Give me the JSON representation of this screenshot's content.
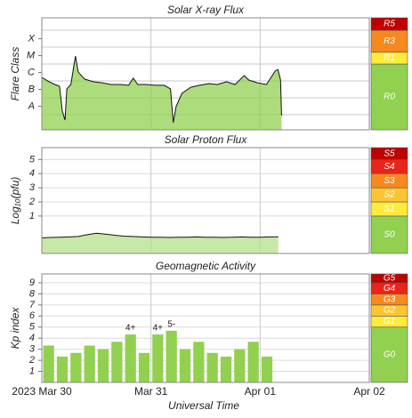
{
  "chart_data": [
    {
      "type": "area",
      "title": "Solar X-ray Flux",
      "ylabel": "Flare Class",
      "color": "#92d050",
      "line_color": "#111111",
      "x": [
        0,
        1.6,
        2.9,
        3.9,
        4.5,
        5.1,
        5.5,
        6.4,
        7.0,
        7.4,
        8.0,
        9.4,
        11.3,
        13.3,
        15.2,
        17.2,
        19.1,
        20.1,
        21.1,
        23.0,
        25.0,
        26.9,
        28.3,
        28.9,
        29.5,
        30.8,
        32.8,
        34.7,
        36.7,
        38.6,
        40.6,
        42.5,
        44.5,
        45.5,
        47.4,
        49.4,
        51.3,
        51.9,
        52.5,
        52.7
      ],
      "values": [
        -5.79,
        -6.05,
        -6.21,
        -6.32,
        -7.79,
        -8.32,
        -6.47,
        -6.21,
        -5.16,
        -4.53,
        -5.47,
        -5.89,
        -6.05,
        -6.11,
        -6.21,
        -6.21,
        -6.26,
        -5.84,
        -6.21,
        -6.21,
        -6.26,
        -6.26,
        -6.47,
        -8.47,
        -7.53,
        -6.74,
        -6.37,
        -6.26,
        -6.16,
        -6.21,
        -6.05,
        -6.21,
        -5.68,
        -5.95,
        -6.11,
        -6.21,
        -5.42,
        -5.32,
        -5.95,
        -8.05
      ],
      "ylim": [
        -8.9,
        -2.26
      ],
      "yticks": [
        {
          "value": -7.5,
          "label": "A"
        },
        {
          "value": -6.5,
          "label": "B"
        },
        {
          "value": -5.5,
          "label": "C"
        },
        {
          "value": -4.5,
          "label": "M"
        },
        {
          "value": -3.5,
          "label": "X"
        }
      ],
      "ygrid": [
        -8,
        -7,
        -6,
        -5,
        -4,
        -3
      ],
      "scale": [
        {
          "label": "R0",
          "from": -8.9,
          "color": "#92d050"
        },
        {
          "label": "R1",
          "from": -5,
          "color": "#ffeb3b"
        },
        {
          "label": "R3",
          "from": -4.3,
          "color": "#f5891f"
        },
        {
          "label": "R5",
          "from": -3,
          "color": "#c00000"
        }
      ]
    },
    {
      "type": "area",
      "title": "Solar Proton Flux",
      "ylabel": "Log₁₀(pfu)",
      "color": "#b6e08a",
      "line_color": "#111111",
      "x": [
        0,
        2,
        4,
        6,
        8,
        10,
        12,
        14,
        16,
        18,
        20,
        22,
        24,
        26,
        28,
        30,
        32,
        34,
        36,
        38,
        40,
        42,
        44,
        46,
        48,
        50,
        52
      ],
      "values": [
        -0.55,
        -0.52,
        -0.5,
        -0.48,
        -0.45,
        -0.32,
        -0.22,
        -0.28,
        -0.36,
        -0.42,
        -0.45,
        -0.48,
        -0.5,
        -0.5,
        -0.52,
        -0.5,
        -0.5,
        -0.48,
        -0.5,
        -0.5,
        -0.52,
        -0.5,
        -0.48,
        -0.5,
        -0.5,
        -0.48,
        -0.47
      ],
      "ylim": [
        -1.65,
        5.84
      ],
      "yticks": [
        1,
        2,
        3,
        4,
        5
      ],
      "scale": [
        {
          "label": "S0",
          "from": -1.65,
          "color": "#92d050"
        },
        {
          "label": "S1",
          "from": 1,
          "color": "#ffeb3b"
        },
        {
          "label": "S2",
          "from": 2,
          "color": "#fbc531"
        },
        {
          "label": "S3",
          "from": 3,
          "color": "#f5891f"
        },
        {
          "label": "S4",
          "from": 4,
          "color": "#e8251b"
        },
        {
          "label": "S5",
          "from": 5,
          "color": "#c00000"
        }
      ]
    },
    {
      "type": "bar",
      "title": "Geomagnetic Activity",
      "ylabel": "Kp index",
      "color": "#92d050",
      "x": [
        1.5,
        4.5,
        7.5,
        10.5,
        13.5,
        16.5,
        19.5,
        22.5,
        25.5,
        28.5,
        31.5,
        34.5,
        37.5,
        40.5,
        43.5,
        46.5,
        49.5
      ],
      "values": [
        3.33,
        2.33,
        2.67,
        3.33,
        3,
        3.67,
        4.33,
        2.67,
        4.33,
        4.67,
        3,
        3.67,
        2.67,
        2.33,
        3,
        3.67,
        2.33
      ],
      "value_labels": [
        null,
        null,
        null,
        null,
        null,
        null,
        "4+",
        null,
        "4+",
        "5-",
        null,
        null,
        null,
        null,
        null,
        null,
        null
      ],
      "ylim": [
        0,
        9.8
      ],
      "yticks": [
        1,
        2,
        3,
        4,
        5,
        6,
        7,
        8,
        9
      ],
      "scale": [
        {
          "label": "G0",
          "from": 0,
          "color": "#92d050"
        },
        {
          "label": "G1",
          "from": 5,
          "color": "#ffeb3b"
        },
        {
          "label": "G2",
          "from": 6,
          "color": "#fbc531"
        },
        {
          "label": "G3",
          "from": 7,
          "color": "#f5891f"
        },
        {
          "label": "G4",
          "from": 8,
          "color": "#e8251b"
        },
        {
          "label": "G5",
          "from": 9,
          "color": "#c00000"
        }
      ]
    }
  ],
  "time_axis": {
    "xlim": [
      0,
      72
    ],
    "xticks": [
      {
        "value": 0,
        "label": "2023 Mar 30"
      },
      {
        "value": 24,
        "label": "Mar 31"
      },
      {
        "value": 48,
        "label": "Apr 01"
      },
      {
        "value": 72,
        "label": "Apr 02"
      }
    ],
    "xlabel": "Universal Time"
  }
}
